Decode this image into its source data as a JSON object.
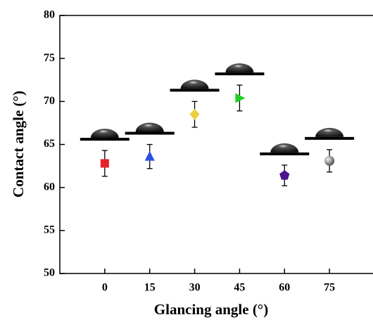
{
  "chart_data": {
    "type": "scatter",
    "xlabel": "Glancing angle (°)",
    "ylabel": "Contact angle (°)",
    "x": [
      0,
      15,
      30,
      45,
      60,
      75
    ],
    "values": [
      62.8,
      63.6,
      68.5,
      70.4,
      61.4,
      63.1
    ],
    "errors": [
      1.5,
      1.4,
      1.5,
      1.5,
      1.2,
      1.3
    ],
    "colors": [
      "#e8202a",
      "#2a52e0",
      "#e8d040",
      "#22d022",
      "#4a148c",
      "#9a9a9a"
    ],
    "markers": [
      "square",
      "triangle-up",
      "diamond",
      "triangle-right",
      "pentagon",
      "sphere"
    ],
    "xlim": [
      -15,
      90
    ],
    "xticks": [
      0,
      15,
      30,
      45,
      60,
      75
    ],
    "ylim": [
      50,
      80
    ],
    "yticks": [
      50,
      55,
      60,
      65,
      70,
      75,
      80
    ]
  }
}
